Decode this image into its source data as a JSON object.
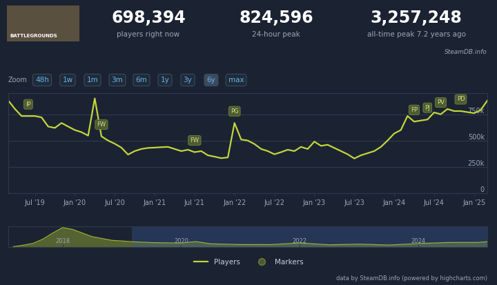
{
  "header": {
    "image_text": "BATTLEGROUNDS",
    "stats": [
      {
        "value": "698,394",
        "label": "players right now"
      },
      {
        "value": "824,596",
        "label": "24-hour peak"
      },
      {
        "value": "3,257,248",
        "label": "all-time peak 7.2 years ago"
      }
    ],
    "source": "SteamDB.info"
  },
  "zoom": {
    "label": "Zoom",
    "buttons": [
      "48h",
      "1w",
      "1m",
      "3m",
      "6m",
      "1y",
      "3y",
      "6y",
      "max"
    ],
    "active": "6y"
  },
  "chart_data": [
    {
      "type": "line",
      "x": [
        "2019-03",
        "2019-04",
        "2019-05",
        "2019-06",
        "2019-07",
        "2019-08",
        "2019-09",
        "2019-10",
        "2019-11",
        "2019-12",
        "2020-01",
        "2020-02",
        "2020-03",
        "2020-04",
        "2020-05",
        "2020-06",
        "2020-07",
        "2020-08",
        "2020-09",
        "2020-10",
        "2020-11",
        "2020-12",
        "2021-01",
        "2021-02",
        "2021-03",
        "2021-04",
        "2021-05",
        "2021-06",
        "2021-07",
        "2021-08",
        "2021-09",
        "2021-10",
        "2021-11",
        "2021-12",
        "2022-01",
        "2022-02",
        "2022-03",
        "2022-04",
        "2022-05",
        "2022-06",
        "2022-07",
        "2022-08",
        "2022-09",
        "2022-10",
        "2022-11",
        "2022-12",
        "2023-01",
        "2023-02",
        "2023-03",
        "2023-04",
        "2023-05",
        "2023-06",
        "2023-07",
        "2023-08",
        "2023-09",
        "2023-10",
        "2023-11",
        "2023-12",
        "2024-01",
        "2024-02",
        "2024-03",
        "2024-04",
        "2024-05",
        "2024-06",
        "2024-07",
        "2024-08",
        "2024-09",
        "2024-10",
        "2024-11",
        "2024-12",
        "2025-01",
        "2025-02",
        "2025-03"
      ],
      "series": [
        {
          "name": "Players",
          "color": "#c4d63c",
          "values": [
            880000,
            800000,
            733000,
            733000,
            733000,
            720000,
            633000,
            620000,
            667000,
            633000,
            600000,
            580000,
            547000,
            900000,
            540000,
            500000,
            470000,
            433000,
            367000,
            400000,
            420000,
            430000,
            433000,
            437000,
            440000,
            420000,
            400000,
            413000,
            390000,
            400000,
            360000,
            347000,
            333000,
            340000,
            667000,
            510000,
            500000,
            467000,
            420000,
            400000,
            370000,
            390000,
            413000,
            400000,
            440000,
            420000,
            490000,
            450000,
            460000,
            430000,
            400000,
            370000,
            330000,
            360000,
            380000,
            400000,
            440000,
            500000,
            567000,
            600000,
            733000,
            680000,
            690000,
            700000,
            767000,
            750000,
            800000,
            780000,
            780000,
            770000,
            760000,
            790000,
            880000
          ]
        }
      ],
      "xlim": [
        "2019-03",
        "2025-03"
      ],
      "xticks": [
        {
          "value": "2019-07",
          "label": "Jul '19"
        },
        {
          "value": "2020-01",
          "label": "Jan '20"
        },
        {
          "value": "2020-07",
          "label": "Jul '20"
        },
        {
          "value": "2021-01",
          "label": "Jan '21"
        },
        {
          "value": "2021-07",
          "label": "Jul '21"
        },
        {
          "value": "2022-01",
          "label": "Jan '22"
        },
        {
          "value": "2022-07",
          "label": "Jul '22"
        },
        {
          "value": "2023-01",
          "label": "Jan '23"
        },
        {
          "value": "2023-07",
          "label": "Jul '23"
        },
        {
          "value": "2024-01",
          "label": "Jan '24"
        },
        {
          "value": "2024-07",
          "label": "Jul '24"
        },
        {
          "value": "2025-01",
          "label": "Jan '25"
        }
      ],
      "ylim": [
        0,
        950000
      ],
      "yticks": [
        0,
        {
          "value": 250000,
          "label": "250k"
        },
        {
          "value": 500000,
          "label": "500k"
        },
        {
          "value": 750000,
          "label": "750k"
        }
      ],
      "grid": true,
      "markers": {
        "name": "Markers",
        "color": "#4c5b30",
        "items": [
          {
            "x": "2019-06",
            "label": "IP"
          },
          {
            "x": "2020-05",
            "label": "FW"
          },
          {
            "x": "2021-07",
            "label": "FW"
          },
          {
            "x": "2022-01",
            "label": "PG"
          },
          {
            "x": "2024-04",
            "label": "FP"
          },
          {
            "x": "2024-06",
            "label": "PJ"
          },
          {
            "x": "2024-08",
            "label": "PV"
          },
          {
            "x": "2024-11",
            "label": "PD"
          }
        ]
      },
      "legend": "lower center"
    },
    {
      "type": "area",
      "x": [
        "2017-03",
        "2017-05",
        "2017-07",
        "2017-09",
        "2017-11",
        "2018-01",
        "2018-03",
        "2018-05",
        "2018-07",
        "2018-09",
        "2018-11",
        "2019-01",
        "2019-03",
        "2019-07",
        "2020-01",
        "2020-04",
        "2020-07",
        "2021-01",
        "2021-07",
        "2022-01",
        "2022-07",
        "2023-01",
        "2023-07",
        "2024-01",
        "2024-07",
        "2025-01",
        "2025-03"
      ],
      "series": [
        {
          "color": "#9db033",
          "values": [
            50000,
            300000,
            600000,
            1300000,
            2300000,
            3200000,
            2900000,
            2300000,
            1700000,
            1400000,
            1100000,
            1000000,
            880000,
            730000,
            660000,
            900000,
            530000,
            410000,
            400000,
            670000,
            370000,
            480000,
            330000,
            570000,
            750000,
            760000,
            880000
          ]
        }
      ],
      "xlim": [
        "2017-02",
        "2025-03"
      ],
      "xticks": [
        {
          "value": "2018-01",
          "label": "2018"
        },
        {
          "value": "2020-01",
          "label": "2020"
        },
        {
          "value": "2022-01",
          "label": "2022"
        },
        {
          "value": "2024-01",
          "label": "2024"
        }
      ],
      "ylim": [
        0,
        3400000
      ],
      "tick_labels": "x"
    }
  ],
  "credit": "data by SteamDB.info (powered by highcharts.com)"
}
